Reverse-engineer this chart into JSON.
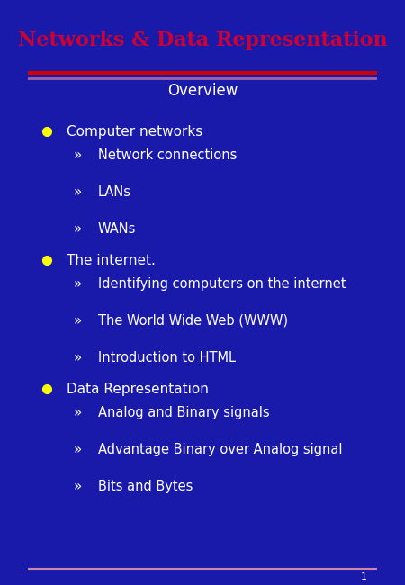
{
  "title": "Networks & Data Representation",
  "subtitle": "Overview",
  "bg_color": "#1a1aaa",
  "title_color": "#cc0033",
  "subtitle_color": "#ffffff",
  "bullet_color": "#ffff00",
  "text_color": "#ffffff",
  "line_color_red": "#cc0000",
  "line_color_purple": "#9966aa",
  "footer_line_color": "#cc88aa",
  "page_number": "1",
  "sections": [
    {
      "bullet": "Computer networks",
      "subitems": [
        "Network connections",
        "LANs",
        "WANs"
      ]
    },
    {
      "bullet": "The internet.",
      "subitems": [
        "Identifying computers on the internet",
        "The World Wide Web (WWW)",
        "Introduction to HTML"
      ]
    },
    {
      "bullet": "Data Representation",
      "subitems": [
        "Analog and Binary signals",
        "Advantage Binary over Analog signal",
        "Bits and Bytes"
      ]
    }
  ],
  "figsize": [
    4.5,
    6.5
  ],
  "dpi": 100
}
